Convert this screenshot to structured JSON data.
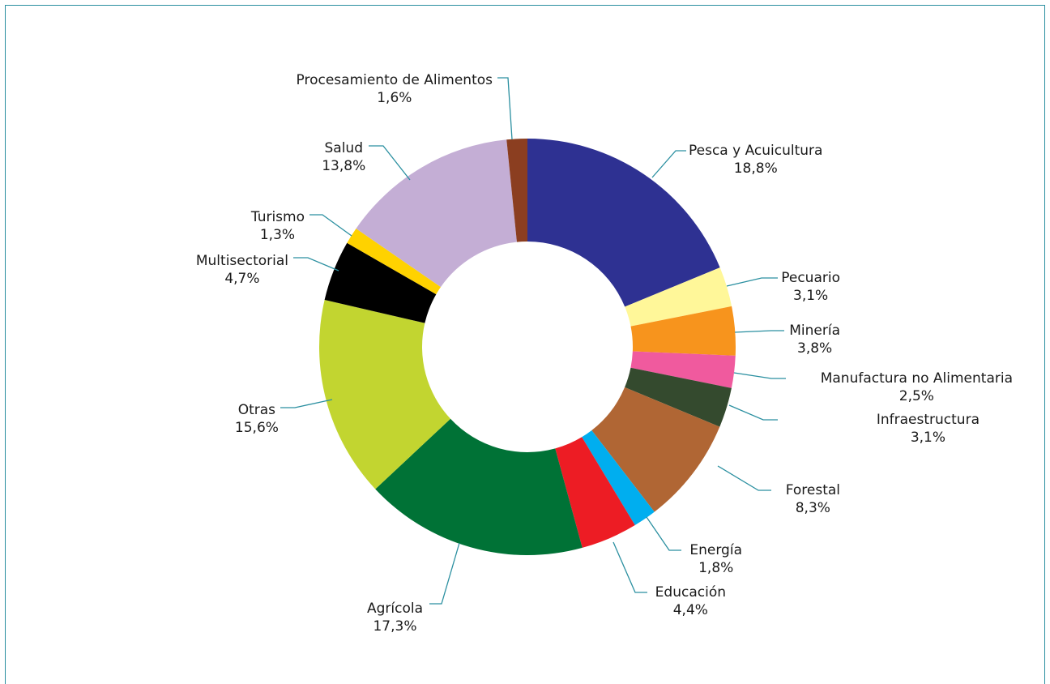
{
  "chart_data": {
    "type": "pie",
    "title": "",
    "series": [
      {
        "slices": [
          {
            "label": "Pesca y Acuicultura",
            "value_text": "18,8%",
            "value": 18.8,
            "color": "#2e3192"
          },
          {
            "label": "Pecuario",
            "value_text": "3,1%",
            "value": 3.1,
            "color": "#fff799"
          },
          {
            "label": "Minería",
            "value_text": "3,8%",
            "value": 3.8,
            "color": "#f7941d"
          },
          {
            "label": "Manufactura no Alimentaria",
            "value_text": "2,5%",
            "value": 2.5,
            "color": "#f05a9e"
          },
          {
            "label": "Infraestructura",
            "value_text": "3,1%",
            "value": 3.1,
            "color": "#344a2e"
          },
          {
            "label": "Forestal",
            "value_text": "8,3%",
            "value": 8.3,
            "color": "#b06634"
          },
          {
            "label": "Energía",
            "value_text": "1,8%",
            "value": 1.8,
            "color": "#00aeef"
          },
          {
            "label": "Educación",
            "value_text": "4,4%",
            "value": 4.4,
            "color": "#ed1c24"
          },
          {
            "label": "Agrícola",
            "value_text": "17,3%",
            "value": 17.3,
            "color": "#007236"
          },
          {
            "label": "Otras",
            "value_text": "15,6%",
            "value": 15.6,
            "color": "#c2d530"
          },
          {
            "label": "Multisectorial",
            "value_text": "4,7%",
            "value": 4.7,
            "color": "#000000"
          },
          {
            "label": "Turismo",
            "value_text": "1,3%",
            "value": 1.3,
            "color": "#ffd200"
          },
          {
            "label": "Salud",
            "value_text": "13,8%",
            "value": 13.8,
            "color": "#c4aed5"
          },
          {
            "label": "Procesamiento de Alimentos",
            "value_text": "1,6%",
            "value": 1.6,
            "color": "#8b3e20"
          }
        ]
      }
    ],
    "legend": "none",
    "donut": true
  }
}
